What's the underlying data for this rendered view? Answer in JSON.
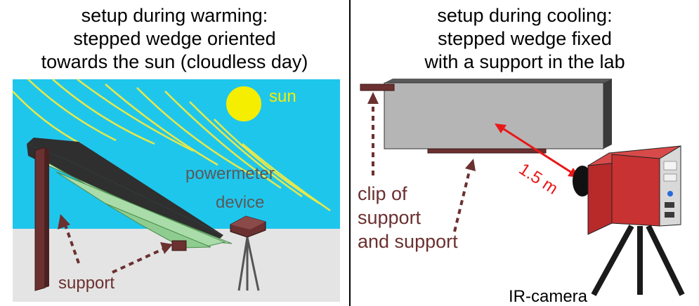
{
  "left_panel": {
    "title_lines": [
      "setup during warming:",
      "stepped wedge oriented",
      "towards the sun (cloudless day)"
    ],
    "labels": {
      "sun": "sun",
      "powermeter": "powermeter",
      "device": "device",
      "support": "support"
    }
  },
  "right_panel": {
    "title_lines": [
      "setup during cooling:",
      "stepped wedge fixed",
      "with a support in the lab"
    ],
    "labels": {
      "clip_line1": "clip of",
      "clip_line2": "support",
      "clip_line3": "and support",
      "distance": "1.5 m",
      "camera": "IR-camera"
    }
  },
  "colors": {
    "sky": "#1fc6ec",
    "ground": "#e4e4e4",
    "sun": "#f5ee00",
    "sun_rays": "#e8e84a",
    "wedge_top": "#c8f0c8",
    "wedge_dark": "#2f2f2f",
    "post": "#6b3030",
    "label_gray": "#595959",
    "red_arrow": "#e81818",
    "camera_red": "#c83232"
  }
}
